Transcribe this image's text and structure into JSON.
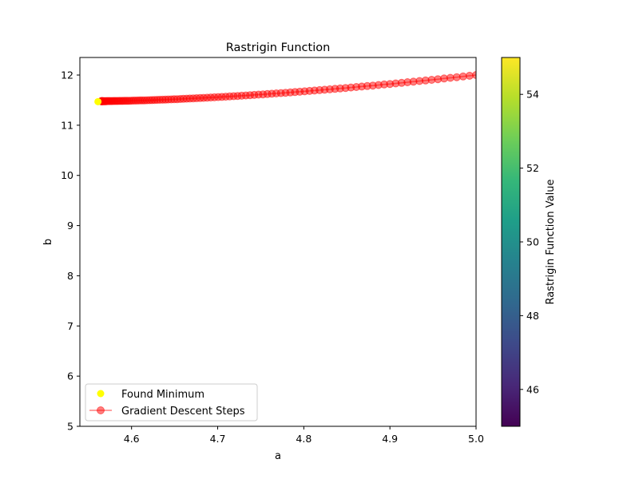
{
  "chart_data": {
    "type": "scatter",
    "title": "Rastrigin Function",
    "xlabel": "a",
    "ylabel": "b",
    "xlim": [
      4.54,
      5.0
    ],
    "ylim": [
      5,
      12.35
    ],
    "xticks": [
      4.6,
      4.7,
      4.8,
      4.9,
      5.0
    ],
    "xtick_labels": [
      "4.6",
      "4.7",
      "4.8",
      "4.9",
      "5.0"
    ],
    "yticks": [
      5,
      6,
      7,
      8,
      9,
      10,
      11,
      12
    ],
    "ytick_labels": [
      "5",
      "6",
      "7",
      "8",
      "9",
      "10",
      "11",
      "12"
    ],
    "grid": false,
    "legend_position": "lower-left",
    "series": [
      {
        "name": "Gradient Descent Steps",
        "kind": "line-with-markers",
        "color": "#ff0000",
        "alpha": 0.5,
        "start": [
          5.0,
          12.0
        ],
        "end": [
          4.565,
          11.48
        ],
        "count": 110
      },
      {
        "name": "Found Minimum",
        "kind": "scatter",
        "color": "#ffff00",
        "x": [
          4.561
        ],
        "y": [
          11.47
        ]
      }
    ],
    "colorbar": {
      "label": "Rastrigin Function Value",
      "colormap": "viridis",
      "range": [
        45,
        55
      ],
      "ticks": [
        46,
        48,
        50,
        52,
        54
      ],
      "tick_labels": [
        "46",
        "48",
        "50",
        "52",
        "54"
      ],
      "colors": [
        "#440154",
        "#482878",
        "#3e4989",
        "#31688e",
        "#26828e",
        "#1f9e89",
        "#35b779",
        "#6ece58",
        "#b5de2b",
        "#fde725"
      ]
    }
  }
}
